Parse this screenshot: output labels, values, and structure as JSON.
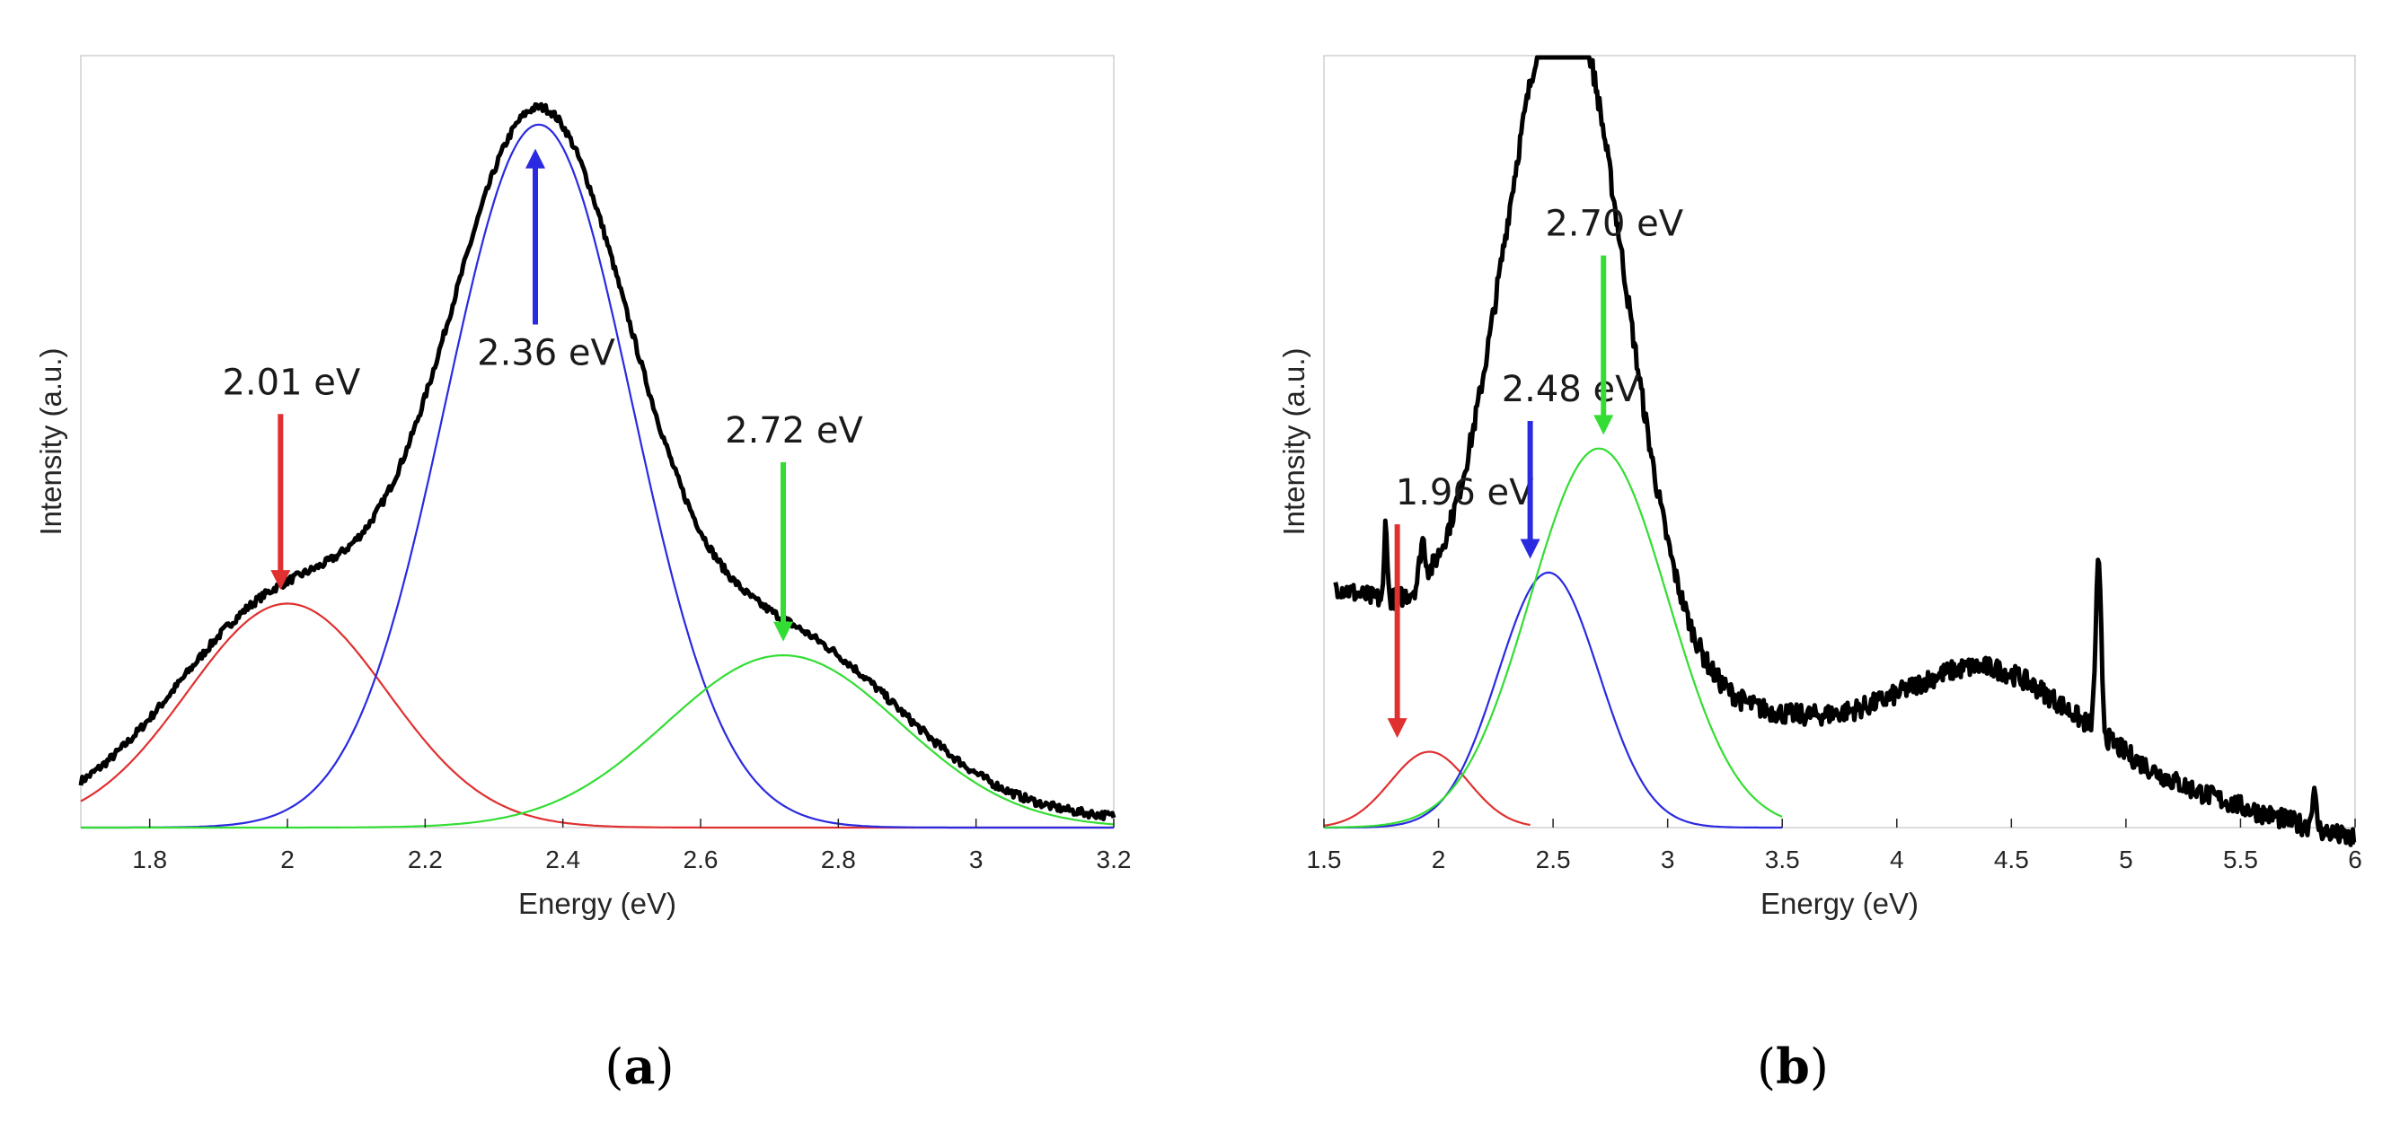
{
  "chart_data": [
    {
      "type": "line",
      "panel_label": "a",
      "xlabel": "Energy (eV)",
      "ylabel": "Intensity (a.u.)",
      "xlim": [
        1.7,
        3.2
      ],
      "ylim": [
        0,
        1.12
      ],
      "xticks": [
        1.8,
        2,
        2.2,
        2.4,
        2.6,
        2.8,
        3,
        3.2
      ],
      "xtick_labels": [
        "1.8",
        "2",
        "2.2",
        "2.4",
        "2.6",
        "2.8",
        "3",
        "3.2"
      ],
      "grid": false,
      "series": [
        {
          "name": "measured",
          "color": "#000000",
          "model": "sum-of-gaussians-with-noise",
          "peak_x": 2.36,
          "peak_y": 1.12,
          "x": [
            1.7,
            3.2
          ]
        },
        {
          "name": "fit 2.01 eV",
          "color": "#e03030",
          "center": 2.0,
          "amplitude": 0.325,
          "sigma": 0.145
        },
        {
          "name": "fit 2.36 eV",
          "color": "#2a2ae0",
          "center": 2.365,
          "amplitude": 1.02,
          "sigma": 0.135
        },
        {
          "name": "fit 2.72 eV",
          "color": "#33dd33",
          "center": 2.72,
          "amplitude": 0.25,
          "sigma": 0.17
        }
      ],
      "annotations": [
        {
          "text": "2.01 eV",
          "color": "#e03030",
          "x": 1.99,
          "y_from": 0.6,
          "y_to": 0.345,
          "direction": "down"
        },
        {
          "text": "2.36 eV",
          "color": "#2a2ae0",
          "x": 2.36,
          "y_from": 0.73,
          "y_to": 0.985,
          "direction": "up"
        },
        {
          "text": "2.72 eV",
          "color": "#33dd33",
          "x": 2.72,
          "y_from": 0.53,
          "y_to": 0.27,
          "direction": "down"
        }
      ]
    },
    {
      "type": "line",
      "panel_label": "b",
      "xlabel": "Energy (eV)",
      "ylabel": "Intensity (a.u.)",
      "xlim": [
        1.5,
        6
      ],
      "ylim": [
        0,
        1.12
      ],
      "xticks": [
        1.5,
        2,
        2.5,
        3,
        3.5,
        4,
        4.5,
        5,
        5.5,
        6
      ],
      "xtick_labels": [
        "1.5",
        "2",
        "2.5",
        "3",
        "3.5",
        "4",
        "4.5",
        "5",
        "5.5",
        "6"
      ],
      "grid": false,
      "series": [
        {
          "name": "measured",
          "color": "#000000",
          "model": "noisy-spectrum",
          "peak_x": 2.55,
          "peak_y": 1.12,
          "x": [
            1.55,
            6
          ]
        },
        {
          "name": "fit 1.96 eV",
          "color": "#e03030",
          "center": 1.96,
          "amplitude": 0.11,
          "sigma": 0.17,
          "x": [
            1.5,
            2.4
          ]
        },
        {
          "name": "fit 2.48 eV",
          "color": "#2a2ae0",
          "center": 2.48,
          "amplitude": 0.37,
          "sigma": 0.22,
          "x": [
            1.5,
            3.5
          ]
        },
        {
          "name": "fit 2.70 eV",
          "color": "#33dd33",
          "center": 2.7,
          "amplitude": 0.55,
          "sigma": 0.3,
          "x": [
            1.5,
            3.5
          ]
        }
      ],
      "annotations": [
        {
          "text": "1.96 eV",
          "color": "#e03030",
          "x": 1.82,
          "y_from": 0.44,
          "y_to": 0.13,
          "direction": "down"
        },
        {
          "text": "2.48 eV",
          "color": "#2a2ae0",
          "x": 2.4,
          "y_from": 0.59,
          "y_to": 0.39,
          "direction": "down"
        },
        {
          "text": "2.70 eV",
          "color": "#33dd33",
          "x": 2.72,
          "y_from": 0.83,
          "y_to": 0.57,
          "direction": "down"
        }
      ]
    }
  ],
  "captions": [
    {
      "open": "(",
      "letter": "a",
      "close": ")"
    },
    {
      "open": "(",
      "letter": "b",
      "close": ")"
    }
  ]
}
